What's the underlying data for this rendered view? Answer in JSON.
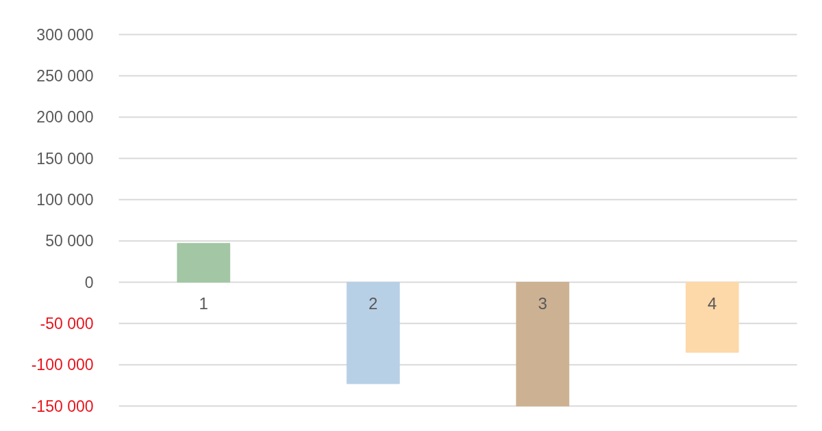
{
  "chart_data": {
    "type": "bar",
    "categories": [
      "1",
      "2",
      "3",
      "4"
    ],
    "values": [
      47000,
      -123000,
      -150000,
      -85000
    ],
    "colors": [
      "#a3c6a4",
      "#b8d0e6",
      "#ccb193",
      "#fdd8a8"
    ],
    "ylim": [
      -150000,
      300000
    ],
    "yticks": [
      {
        "value": -150000,
        "label": "-150 000"
      },
      {
        "value": -100000,
        "label": "-100 000"
      },
      {
        "value": -50000,
        "label": "-50 000"
      },
      0,
      {
        "value": 50000,
        "label": "50 000"
      },
      {
        "value": 100000,
        "label": "100 000"
      },
      {
        "value": 150000,
        "label": "150 000"
      },
      {
        "value": 200000,
        "label": "200 000"
      },
      {
        "value": 250000,
        "label": "250 000"
      },
      {
        "value": 300000,
        "label": "300 000"
      }
    ],
    "grid": "y",
    "legend": false
  }
}
